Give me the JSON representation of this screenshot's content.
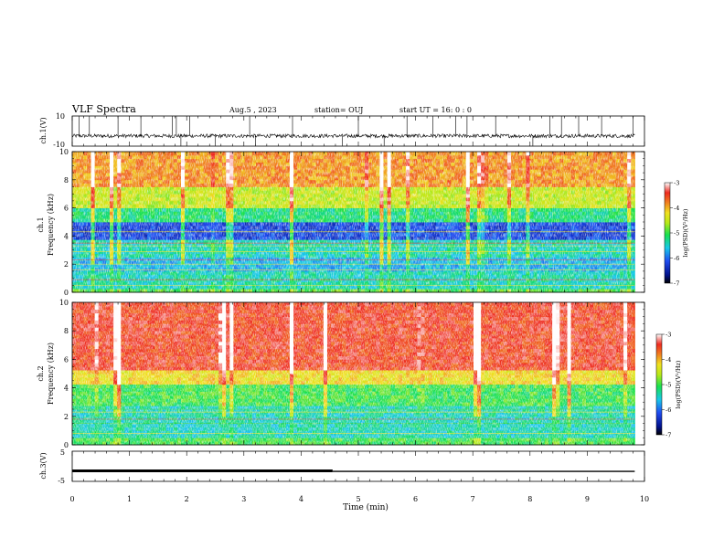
{
  "header": {
    "title": "VLF Spectra",
    "date": "Aug.5 , 2023",
    "station": "station= OUJ",
    "start_ut": "start UT = 16: 0 : 0"
  },
  "chart_data": [
    {
      "type": "line",
      "panel": "ch1-waveform",
      "ylabel": "ch.1(V)",
      "ylim": [
        -10,
        10
      ],
      "y_ticks": [
        "10",
        "-10"
      ],
      "xlim": [
        0,
        10
      ],
      "baseline": -3.2,
      "spike_times": [
        0.12,
        0.3,
        0.8,
        1.2,
        1.75,
        1.82,
        1.9,
        2.05,
        2.5,
        3.1,
        3.2,
        3.85,
        4.72,
        5.0,
        5.45,
        5.85,
        6.3,
        6.7,
        6.9,
        7.4,
        8.05,
        8.35,
        8.55,
        8.85,
        9.25,
        9.8
      ]
    },
    {
      "type": "heatmap",
      "panel": "ch1-spectrogram",
      "ylabel": "Frequency (kHz)",
      "channel_label": "ch.1",
      "xlim": [
        0,
        10
      ],
      "data_xmax": 9.83,
      "ylim": [
        0,
        10
      ],
      "y_ticks": [
        "0",
        "2",
        "4",
        "6",
        "8",
        "10"
      ],
      "colorbar": {
        "label": "log(PSD)(V²/Hz)",
        "ticks": [
          "-3",
          "-4",
          "-5",
          "-6",
          "-7"
        ],
        "range": [
          -7,
          -3
        ]
      }
    },
    {
      "type": "heatmap",
      "panel": "ch2-spectrogram",
      "ylabel": "Frequency (kHz)",
      "channel_label": "ch.2",
      "xlim": [
        0,
        10
      ],
      "data_xmax": 9.83,
      "ylim": [
        0,
        10
      ],
      "y_ticks": [
        "0",
        "2",
        "4",
        "6",
        "8",
        "10"
      ],
      "colorbar": {
        "label": "log(PSD)(V²/Hz)",
        "ticks": [
          "-3",
          "-4",
          "-5",
          "-6",
          "-7"
        ],
        "range": [
          -7,
          -3
        ]
      }
    },
    {
      "type": "line",
      "panel": "ch3-waveform",
      "ylabel": "ch.3(V)",
      "ylim": [
        -5,
        5
      ],
      "y_ticks": [
        "5",
        "-5"
      ],
      "xlim": [
        0,
        10
      ],
      "series": [
        {
          "x": [
            0,
            4.55
          ],
          "y": [
            -1.5,
            -1.5
          ]
        },
        {
          "x": [
            4.55,
            9.83
          ],
          "y": [
            -1.7,
            -1.7
          ]
        }
      ],
      "xlabel": "Time (min)",
      "x_ticks": [
        "0",
        "1",
        "2",
        "3",
        "4",
        "5",
        "6",
        "7",
        "8",
        "9",
        "10"
      ]
    }
  ],
  "colors": {
    "red": "#ee3a2a",
    "orange": "#f07a20",
    "yellow": "#e8e020",
    "green": "#3ad03a",
    "cyan": "#20d0c8",
    "blue": "#2050e0",
    "navy": "#001080"
  }
}
